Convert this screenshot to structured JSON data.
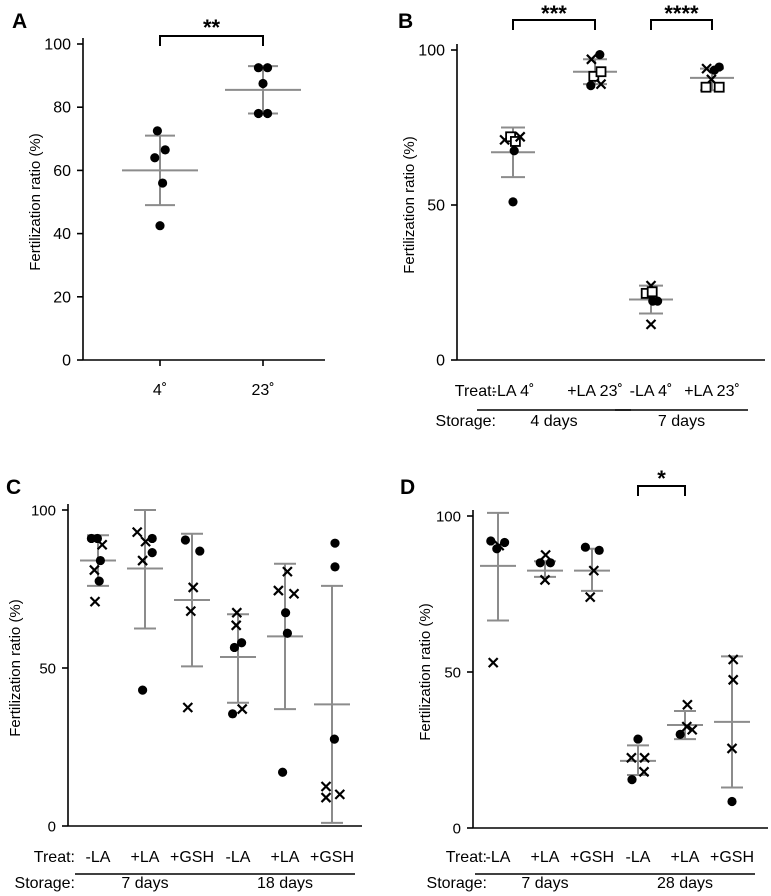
{
  "chart_data": [
    {
      "id": "A",
      "panel_label": "A",
      "type": "scatter",
      "ylabel": "Fertilization ratio (%)",
      "ylim": [
        0,
        100
      ],
      "yticks": [
        0,
        20,
        40,
        60,
        80,
        100
      ],
      "groups": [
        {
          "label": "4˚",
          "mean": 60,
          "sd_low": 49,
          "sd_high": 71,
          "points": [
            {
              "m": "dot",
              "v": 72.5,
              "dx": -0.2
            },
            {
              "m": "dot",
              "v": 66.5,
              "dx": 0.4
            },
            {
              "m": "dot",
              "v": 64,
              "dx": -0.4
            },
            {
              "m": "dot",
              "v": 56,
              "dx": 0.2
            },
            {
              "m": "dot",
              "v": 42.5,
              "dx": 0
            }
          ]
        },
        {
          "label": "23˚",
          "mean": 85.5,
          "sd_low": 78,
          "sd_high": 93,
          "points": [
            {
              "m": "dot",
              "v": 92.5,
              "dx": -0.35
            },
            {
              "m": "dot",
              "v": 92.5,
              "dx": 0.35
            },
            {
              "m": "dot",
              "v": 87.5,
              "dx": 0
            },
            {
              "m": "dot",
              "v": 78,
              "dx": -0.35
            },
            {
              "m": "dot",
              "v": 78,
              "dx": 0.35
            }
          ]
        }
      ],
      "significance": [
        {
          "from": 0,
          "to": 1,
          "label": "**"
        }
      ]
    },
    {
      "id": "B",
      "panel_label": "B",
      "type": "scatter",
      "ylabel": "Fertilization ratio (%)",
      "ylim": [
        0,
        100
      ],
      "yticks": [
        0,
        50,
        100
      ],
      "treat_label": "Treat:",
      "storage_label": "Storage:",
      "groups": [
        {
          "label": "-LA 4˚",
          "mean": 67,
          "sd_low": 59,
          "sd_high": 75,
          "points": [
            {
              "m": "x",
              "v": 71,
              "dx": -0.7
            },
            {
              "m": "sq",
              "v": 72,
              "dx": -0.2
            },
            {
              "m": "sq",
              "v": 70.5,
              "dx": 0.2
            },
            {
              "m": "x",
              "v": 72,
              "dx": 0.6
            },
            {
              "m": "dot",
              "v": 67.5,
              "dx": 0.1
            },
            {
              "m": "dot",
              "v": 51,
              "dx": 0
            }
          ]
        },
        {
          "label": "+LA 23˚",
          "mean": 93,
          "sd_low": 89,
          "sd_high": 97,
          "points": [
            {
              "m": "x",
              "v": 97,
              "dx": -0.3
            },
            {
              "m": "dot",
              "v": 98.5,
              "dx": 0.4
            },
            {
              "m": "sq",
              "v": 91.5,
              "dx": -0.1
            },
            {
              "m": "sq",
              "v": 93,
              "dx": 0.5
            },
            {
              "m": "dot",
              "v": 88.5,
              "dx": -0.35
            },
            {
              "m": "x",
              "v": 89,
              "dx": 0.5
            }
          ]
        },
        {
          "label": "-LA 4˚",
          "mean": 19.5,
          "sd_low": 15,
          "sd_high": 24,
          "points": [
            {
              "m": "x",
              "v": 24,
              "dx": 0
            },
            {
              "m": "sq",
              "v": 21.5,
              "dx": -0.4
            },
            {
              "m": "sq",
              "v": 22,
              "dx": 0.1
            },
            {
              "m": "dot",
              "v": 19,
              "dx": 0.15
            },
            {
              "m": "dot",
              "v": 19,
              "dx": 0.55
            },
            {
              "m": "x",
              "v": 11.5,
              "dx": 0
            }
          ]
        },
        {
          "label": "+LA 23˚",
          "mean": 91,
          "sd_low": 87,
          "sd_high": 94,
          "points": [
            {
              "m": "x",
              "v": 94,
              "dx": -0.45
            },
            {
              "m": "dot",
              "v": 93.5,
              "dx": 0.2
            },
            {
              "m": "dot",
              "v": 94.5,
              "dx": 0.6
            },
            {
              "m": "x",
              "v": 90.5,
              "dx": -0.05
            },
            {
              "m": "sq",
              "v": 88,
              "dx": -0.5
            },
            {
              "m": "sq",
              "v": 88,
              "dx": 0.6
            }
          ]
        }
      ],
      "storage": [
        {
          "label": "4 days",
          "from": 0,
          "to": 1
        },
        {
          "label": "7 days",
          "from": 2,
          "to": 3
        }
      ],
      "significance": [
        {
          "from": 0,
          "to": 1,
          "label": "***"
        },
        {
          "from": 2,
          "to": 3,
          "label": "****"
        }
      ]
    },
    {
      "id": "C",
      "panel_label": "C",
      "type": "scatter",
      "ylabel": "Fertilization ratio (%)",
      "ylim": [
        0,
        100
      ],
      "yticks": [
        0,
        50,
        100
      ],
      "treat_label": "Treat:",
      "storage_label": "Storage:",
      "groups": [
        {
          "label": "-LA",
          "mean": 84,
          "sd_low": 76,
          "sd_high": 92,
          "points": [
            {
              "m": "dot",
              "v": 91,
              "dx": -0.55
            },
            {
              "m": "dot",
              "v": 91,
              "dx": -0.05
            },
            {
              "m": "x",
              "v": 89,
              "dx": 0.35
            },
            {
              "m": "dot",
              "v": 84,
              "dx": 0.2
            },
            {
              "m": "x",
              "v": 81,
              "dx": -0.3
            },
            {
              "m": "dot",
              "v": 77.5,
              "dx": 0.1
            },
            {
              "m": "x",
              "v": 71,
              "dx": -0.25
            }
          ]
        },
        {
          "label": "+LA",
          "mean": 81.5,
          "sd_low": 62.5,
          "sd_high": 100,
          "points": [
            {
              "m": "x",
              "v": 93,
              "dx": -0.65
            },
            {
              "m": "dot",
              "v": 91,
              "dx": 0.6
            },
            {
              "m": "x",
              "v": 90,
              "dx": 0.05
            },
            {
              "m": "x",
              "v": 84,
              "dx": -0.2
            },
            {
              "m": "dot",
              "v": 86.5,
              "dx": 0.6
            },
            {
              "m": "dot",
              "v": 43,
              "dx": -0.2
            }
          ]
        },
        {
          "label": "+GSH",
          "mean": 71.5,
          "sd_low": 50.5,
          "sd_high": 92.5,
          "points": [
            {
              "m": "dot",
              "v": 90.5,
              "dx": -0.55
            },
            {
              "m": "dot",
              "v": 87,
              "dx": 0.65
            },
            {
              "m": "x",
              "v": 75.5,
              "dx": 0.1
            },
            {
              "m": "x",
              "v": 68,
              "dx": -0.1
            },
            {
              "m": "x",
              "v": 37.5,
              "dx": -0.35
            }
          ]
        },
        {
          "label": "-LA",
          "mean": 53.5,
          "sd_low": 39,
          "sd_high": 67,
          "points": [
            {
              "m": "x",
              "v": 67.5,
              "dx": -0.1
            },
            {
              "m": "x",
              "v": 63.5,
              "dx": -0.15
            },
            {
              "m": "dot",
              "v": 58,
              "dx": 0.3
            },
            {
              "m": "dot",
              "v": 56.5,
              "dx": -0.3
            },
            {
              "m": "x",
              "v": 37,
              "dx": 0.35
            },
            {
              "m": "dot",
              "v": 35.5,
              "dx": -0.45
            }
          ]
        },
        {
          "label": "+LA",
          "mean": 60,
          "sd_low": 37,
          "sd_high": 83,
          "points": [
            {
              "m": "x",
              "v": 80.5,
              "dx": 0.2
            },
            {
              "m": "x",
              "v": 74.5,
              "dx": -0.55
            },
            {
              "m": "x",
              "v": 73.5,
              "dx": 0.75
            },
            {
              "m": "dot",
              "v": 67.5,
              "dx": 0.05
            },
            {
              "m": "dot",
              "v": 61,
              "dx": 0.2
            },
            {
              "m": "dot",
              "v": 17,
              "dx": -0.2
            }
          ]
        },
        {
          "label": "+GSH",
          "mean": 38.5,
          "sd_low": 1,
          "sd_high": 76,
          "points": [
            {
              "m": "dot",
              "v": 89.5,
              "dx": 0.25
            },
            {
              "m": "dot",
              "v": 82,
              "dx": 0.25
            },
            {
              "m": "dot",
              "v": 27.5,
              "dx": 0.2
            },
            {
              "m": "x",
              "v": 12.5,
              "dx": -0.5
            },
            {
              "m": "x",
              "v": 10,
              "dx": 0.65
            },
            {
              "m": "x",
              "v": 9,
              "dx": -0.5
            }
          ]
        }
      ],
      "storage": [
        {
          "label": "7 days",
          "from": 0,
          "to": 2
        },
        {
          "label": "18 days",
          "from": 3,
          "to": 5
        }
      ],
      "significance": []
    },
    {
      "id": "D",
      "panel_label": "D",
      "type": "scatter",
      "ylabel": "Fertilization ratio (%)",
      "ylim": [
        0,
        100
      ],
      "yticks": [
        0,
        50,
        100
      ],
      "treat_label": "Treat:",
      "storage_label": "Storage:",
      "groups": [
        {
          "label": "-LA",
          "mean": 84,
          "sd_low": 66.5,
          "sd_high": 101,
          "points": [
            {
              "m": "dot",
              "v": 92,
              "dx": -0.6
            },
            {
              "m": "dot",
              "v": 91.5,
              "dx": 0.55
            },
            {
              "m": "x",
              "v": 90.5,
              "dx": 0.1
            },
            {
              "m": "dot",
              "v": 89.5,
              "dx": -0.1
            },
            {
              "m": "x",
              "v": 53,
              "dx": -0.4
            }
          ]
        },
        {
          "label": "+LA",
          "mean": 82.5,
          "sd_low": 80.5,
          "sd_high": 85.5,
          "points": [
            {
              "m": "x",
              "v": 87.5,
              "dx": 0.05
            },
            {
              "m": "dot",
              "v": 85,
              "dx": -0.4
            },
            {
              "m": "dot",
              "v": 85,
              "dx": 0.45
            },
            {
              "m": "x",
              "v": 79.5,
              "dx": 0
            }
          ]
        },
        {
          "label": "+GSH",
          "mean": 82.5,
          "sd_low": 76,
          "sd_high": 89.5,
          "points": [
            {
              "m": "dot",
              "v": 90,
              "dx": -0.55
            },
            {
              "m": "dot",
              "v": 89,
              "dx": 0.6
            },
            {
              "m": "x",
              "v": 82.5,
              "dx": 0.15
            },
            {
              "m": "x",
              "v": 74,
              "dx": -0.15
            }
          ]
        },
        {
          "label": "-LA",
          "mean": 21.5,
          "sd_low": 17,
          "sd_high": 26.5,
          "points": [
            {
              "m": "dot",
              "v": 28.5,
              "dx": 0
            },
            {
              "m": "x",
              "v": 22.5,
              "dx": -0.55
            },
            {
              "m": "x",
              "v": 22.5,
              "dx": 0.55
            },
            {
              "m": "x",
              "v": 18,
              "dx": 0.5
            },
            {
              "m": "dot",
              "v": 15.5,
              "dx": -0.5
            }
          ]
        },
        {
          "label": "+LA",
          "mean": 33,
          "sd_low": 28.5,
          "sd_high": 37.5,
          "points": [
            {
              "m": "x",
              "v": 39.5,
              "dx": 0.2
            },
            {
              "m": "x",
              "v": 32.5,
              "dx": 0.15
            },
            {
              "m": "x",
              "v": 31.5,
              "dx": 0.6
            },
            {
              "m": "dot",
              "v": 30,
              "dx": -0.4
            }
          ]
        },
        {
          "label": "+GSH",
          "mean": 34,
          "sd_low": 13,
          "sd_high": 55,
          "points": [
            {
              "m": "x",
              "v": 54,
              "dx": 0.1
            },
            {
              "m": "x",
              "v": 47.5,
              "dx": 0.1
            },
            {
              "m": "x",
              "v": 25.5,
              "dx": 0
            },
            {
              "m": "dot",
              "v": 8.5,
              "dx": 0
            }
          ]
        }
      ],
      "storage": [
        {
          "label": "7 days",
          "from": 0,
          "to": 2
        },
        {
          "label": "28 days",
          "from": 3,
          "to": 5
        }
      ],
      "significance": [
        {
          "from": 3,
          "to": 4,
          "label": "*"
        }
      ]
    }
  ]
}
